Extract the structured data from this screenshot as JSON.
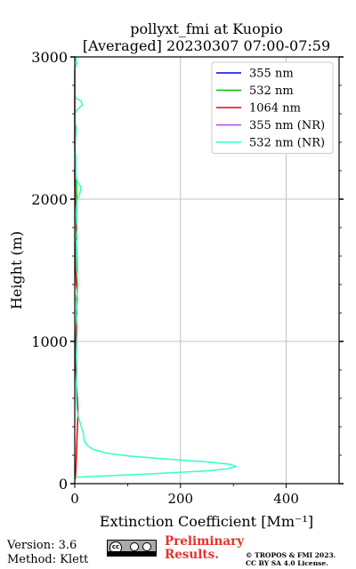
{
  "chart_data": {
    "type": "line",
    "title": "pollyxt_fmi at Kuopio",
    "subtitle": "[Averaged] 20230307 07:00-07:59",
    "xlabel": "Extinction Coefficient [Mm⁻¹]",
    "ylabel": "Height (m)",
    "xlim": [
      0,
      500
    ],
    "ylim": [
      0,
      3000
    ],
    "xticks": [
      0,
      200,
      400
    ],
    "yticks": [
      0,
      1000,
      2000,
      3000
    ],
    "grid": true,
    "legend_position": "top-right",
    "series": [
      {
        "name": "355 nm",
        "color": "#0000ee",
        "points": []
      },
      {
        "name": "532 nm",
        "color": "#00bb00",
        "points": [
          [
            3,
            1000
          ],
          [
            4,
            1100
          ],
          [
            3,
            1200
          ],
          [
            5,
            1300
          ],
          [
            4,
            1400
          ],
          [
            5,
            1500
          ],
          [
            4,
            1600
          ],
          [
            3,
            1700
          ],
          [
            4,
            1800
          ],
          [
            3,
            1900
          ],
          [
            4,
            2000
          ],
          [
            3,
            2100
          ],
          [
            2,
            2200
          ],
          [
            1,
            2300
          ]
        ]
      },
      {
        "name": "1064 nm",
        "color": "#ee0000",
        "points": [
          [
            1,
            30
          ],
          [
            2,
            100
          ],
          [
            3,
            200
          ],
          [
            4,
            300
          ],
          [
            5,
            400
          ],
          [
            6,
            500
          ],
          [
            5,
            600
          ],
          [
            4,
            650
          ],
          [
            3,
            700
          ],
          [
            2,
            800
          ],
          [
            2,
            900
          ],
          [
            2,
            1000
          ],
          [
            3,
            1100
          ],
          [
            4,
            1200
          ],
          [
            3,
            1300
          ],
          [
            5,
            1350
          ],
          [
            3,
            1400
          ],
          [
            2,
            1500
          ],
          [
            1,
            1600
          ],
          [
            2,
            1700
          ],
          [
            3,
            1800
          ],
          [
            2,
            1900
          ],
          [
            1,
            2000
          ],
          [
            0,
            2100
          ],
          [
            0,
            2200
          ],
          [
            1,
            2300
          ],
          [
            0,
            2400
          ],
          [
            0,
            2500
          ],
          [
            0,
            2600
          ],
          [
            0,
            2700
          ],
          [
            0,
            2800
          ],
          [
            0,
            2900
          ]
        ]
      },
      {
        "name": "355 nm (NR)",
        "color": "#aa44ee",
        "points": []
      },
      {
        "name": "532 nm (NR)",
        "color": "#33ffcc",
        "points": [
          [
            0,
            45
          ],
          [
            60,
            55
          ],
          [
            150,
            70
          ],
          [
            250,
            90
          ],
          [
            290,
            105
          ],
          [
            305,
            120
          ],
          [
            295,
            135
          ],
          [
            260,
            150
          ],
          [
            150,
            180
          ],
          [
            100,
            195
          ],
          [
            60,
            215
          ],
          [
            35,
            240
          ],
          [
            25,
            265
          ],
          [
            18,
            300
          ],
          [
            17,
            340
          ],
          [
            14,
            380
          ],
          [
            10,
            430
          ],
          [
            6,
            480
          ],
          [
            4,
            530
          ],
          [
            3,
            600
          ],
          [
            3,
            700
          ],
          [
            4,
            800
          ],
          [
            3,
            900
          ],
          [
            4,
            1000
          ],
          [
            5,
            1100
          ],
          [
            3,
            1200
          ],
          [
            4,
            1300
          ],
          [
            6,
            1400
          ],
          [
            4,
            1500
          ],
          [
            3,
            1600
          ],
          [
            3,
            1700
          ],
          [
            1,
            1720
          ],
          [
            3,
            1750
          ],
          [
            5,
            1800
          ],
          [
            3,
            1850
          ],
          [
            2,
            1900
          ],
          [
            3,
            1950
          ],
          [
            5,
            2000
          ],
          [
            9,
            2030
          ],
          [
            12,
            2080
          ],
          [
            6,
            2120
          ],
          [
            2,
            2150
          ],
          [
            2,
            2200
          ],
          [
            2,
            2300
          ],
          [
            0,
            2350
          ],
          [
            1,
            2400
          ],
          [
            2,
            2450
          ],
          [
            3,
            2500
          ],
          [
            0,
            2550
          ],
          [
            0,
            2600
          ],
          [
            5,
            2630
          ],
          [
            14,
            2660
          ],
          [
            12,
            2690
          ],
          [
            2,
            2710
          ],
          [
            0,
            2750
          ],
          [
            0,
            2800
          ],
          [
            0,
            2850
          ],
          [
            0,
            2900
          ],
          [
            2,
            2940
          ],
          [
            4,
            2960
          ],
          [
            2,
            2980
          ],
          [
            3,
            3000
          ]
        ]
      }
    ]
  },
  "footer": {
    "version": "Version: 3.6",
    "method": "Method: Klett",
    "preliminary_line1": "Preliminary",
    "preliminary_line2": "Results.",
    "copyright_line1": "© TROPOS & FMI 2023.",
    "copyright_line2": "CC BY SA 4.0 License.",
    "cc_badge_text": "cc"
  }
}
